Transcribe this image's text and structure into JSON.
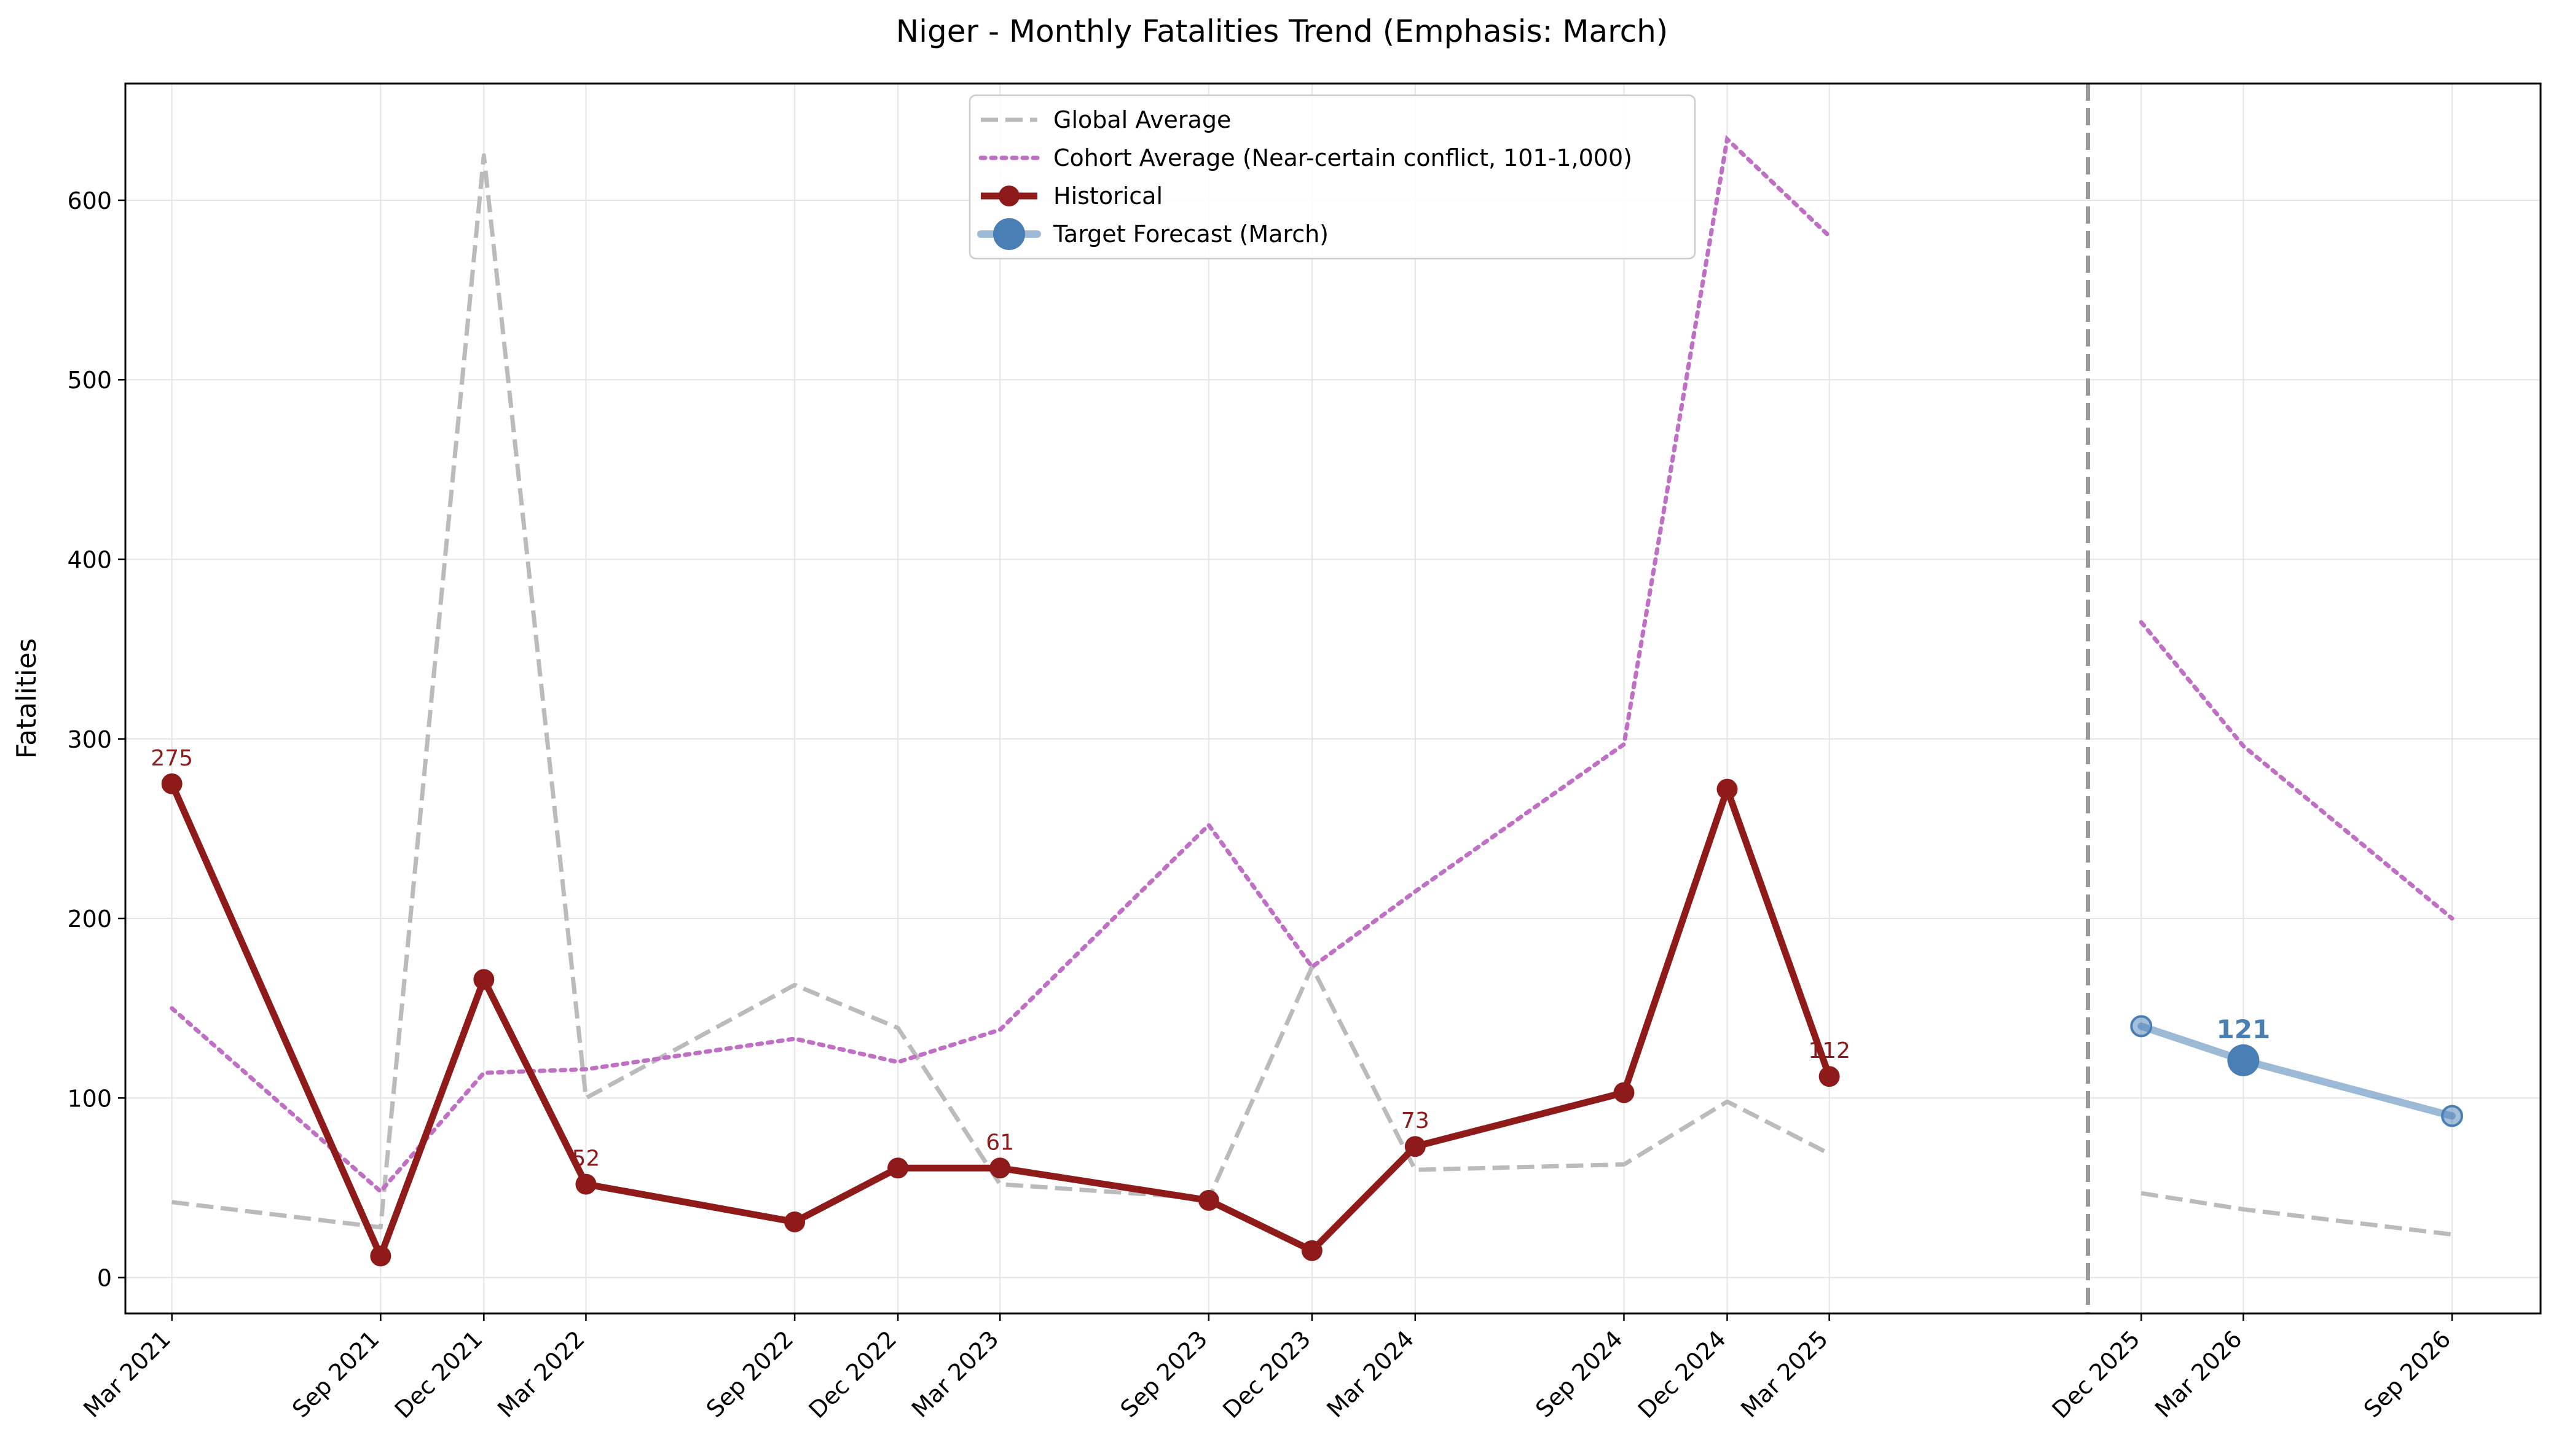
{
  "chart_data": {
    "type": "line",
    "title": "Niger - Monthly Fatalities Trend (Emphasis: March)",
    "xlabel": "",
    "ylabel": "Fatalities",
    "ylim": [
      -20,
      665
    ],
    "yticks": [
      0,
      100,
      200,
      300,
      400,
      500,
      600
    ],
    "x_range": [
      "2021-01-19",
      "2026-11-18"
    ],
    "grid": true,
    "legend_position": "top-center",
    "x_ticks": [
      {
        "label": "Mar 2021",
        "date": "2021-03-01"
      },
      {
        "label": "Sep 2021",
        "date": "2021-09-01"
      },
      {
        "label": "Dec 2021",
        "date": "2021-12-01"
      },
      {
        "label": "Mar 2022",
        "date": "2022-03-01"
      },
      {
        "label": "Sep 2022",
        "date": "2022-09-01"
      },
      {
        "label": "Dec 2022",
        "date": "2022-12-01"
      },
      {
        "label": "Mar 2023",
        "date": "2023-03-01"
      },
      {
        "label": "Sep 2023",
        "date": "2023-09-01"
      },
      {
        "label": "Dec 2023",
        "date": "2023-12-01"
      },
      {
        "label": "Mar 2024",
        "date": "2024-03-01"
      },
      {
        "label": "Sep 2024",
        "date": "2024-09-01"
      },
      {
        "label": "Dec 2024",
        "date": "2024-12-01"
      },
      {
        "label": "Mar 2025",
        "date": "2025-03-01"
      },
      {
        "label": "Dec 2025",
        "date": "2025-12-01"
      },
      {
        "label": "Mar 2026",
        "date": "2026-03-01"
      },
      {
        "label": "Sep 2026",
        "date": "2026-09-01"
      }
    ],
    "forecast_divider_date": "2025-10-15",
    "series": [
      {
        "name": "Global Average",
        "style": "dashed",
        "color": "#bbbbbb",
        "segments": [
          [
            {
              "x": "2021-03-01",
              "y": 42
            },
            {
              "x": "2021-09-01",
              "y": 28
            },
            {
              "x": "2021-12-01",
              "y": 625
            },
            {
              "x": "2022-03-01",
              "y": 100
            },
            {
              "x": "2022-09-01",
              "y": 163
            },
            {
              "x": "2022-12-01",
              "y": 139
            },
            {
              "x": "2023-03-01",
              "y": 52
            },
            {
              "x": "2023-09-01",
              "y": 44
            },
            {
              "x": "2023-12-01",
              "y": 173
            },
            {
              "x": "2024-03-01",
              "y": 60
            },
            {
              "x": "2024-09-01",
              "y": 63
            },
            {
              "x": "2024-12-01",
              "y": 98
            },
            {
              "x": "2025-03-01",
              "y": 69
            }
          ],
          [
            {
              "x": "2025-12-01",
              "y": 47
            },
            {
              "x": "2026-03-01",
              "y": 38
            },
            {
              "x": "2026-09-01",
              "y": 24
            }
          ]
        ]
      },
      {
        "name": "Cohort Average (Near-certain conflict, 101-1,000)",
        "style": "dotted",
        "color": "#bf6fc4",
        "segments": [
          [
            {
              "x": "2021-03-01",
              "y": 150
            },
            {
              "x": "2021-09-01",
              "y": 48
            },
            {
              "x": "2021-12-01",
              "y": 114
            },
            {
              "x": "2022-03-01",
              "y": 116
            },
            {
              "x": "2022-09-01",
              "y": 133
            },
            {
              "x": "2022-12-01",
              "y": 120
            },
            {
              "x": "2023-03-01",
              "y": 138
            },
            {
              "x": "2023-09-01",
              "y": 252
            },
            {
              "x": "2023-12-01",
              "y": 173
            },
            {
              "x": "2024-03-01",
              "y": 215
            },
            {
              "x": "2024-09-01",
              "y": 297
            },
            {
              "x": "2024-12-01",
              "y": 634
            },
            {
              "x": "2025-03-01",
              "y": 580
            }
          ],
          [
            {
              "x": "2025-12-01",
              "y": 365
            },
            {
              "x": "2026-03-01",
              "y": 296
            },
            {
              "x": "2026-09-01",
              "y": 200
            }
          ]
        ]
      },
      {
        "name": "Historical",
        "style": "solid-markers",
        "color": "#8f1a1a",
        "segments": [
          [
            {
              "x": "2021-03-01",
              "y": 275,
              "label": "275"
            },
            {
              "x": "2021-09-01",
              "y": 12
            },
            {
              "x": "2021-12-01",
              "y": 166
            },
            {
              "x": "2022-03-01",
              "y": 52,
              "label": "52"
            },
            {
              "x": "2022-09-01",
              "y": 31
            },
            {
              "x": "2022-12-01",
              "y": 61
            },
            {
              "x": "2023-03-01",
              "y": 61,
              "label": "61"
            },
            {
              "x": "2023-09-01",
              "y": 43
            },
            {
              "x": "2023-12-01",
              "y": 15
            },
            {
              "x": "2024-03-01",
              "y": 73,
              "label": "73"
            },
            {
              "x": "2024-09-01",
              "y": 103
            },
            {
              "x": "2024-12-01",
              "y": 272
            },
            {
              "x": "2025-03-01",
              "y": 112,
              "label": "112"
            }
          ]
        ]
      },
      {
        "name": "Target Forecast (March)",
        "style": "forecast",
        "color": "#4a7fb5",
        "segments": [
          [
            {
              "x": "2025-12-01",
              "y": 140
            },
            {
              "x": "2026-03-01",
              "y": 121,
              "label": "121",
              "emphasis": true
            },
            {
              "x": "2026-09-01",
              "y": 90
            }
          ]
        ]
      }
    ]
  }
}
